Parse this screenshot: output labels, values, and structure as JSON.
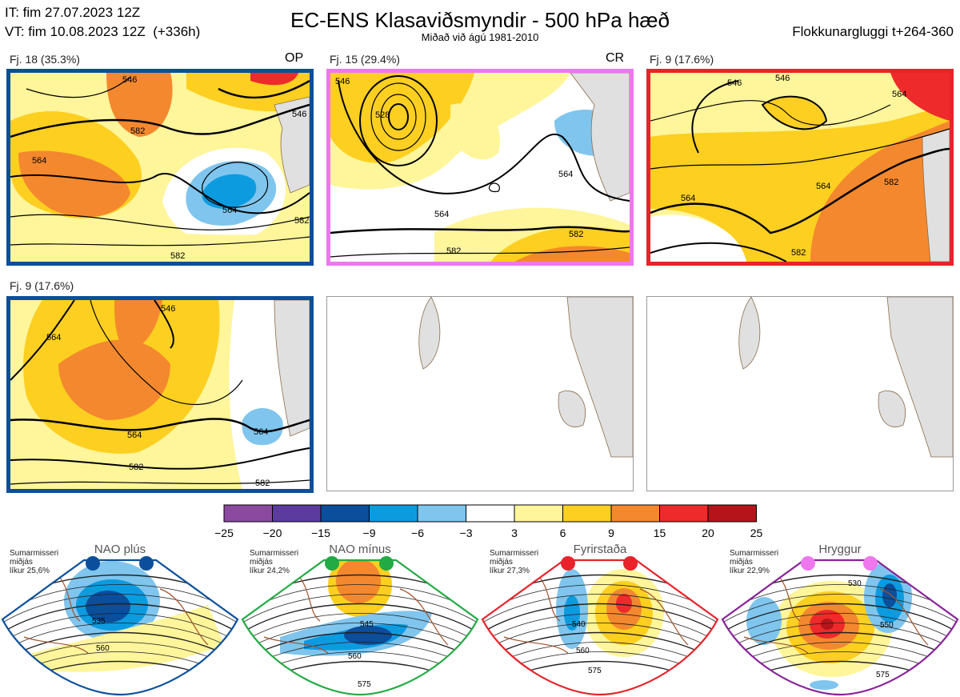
{
  "header": {
    "init_time": "IT: fim 27.07.2023 12Z",
    "valid_time": "VT: fim 10.08.2023 12Z  (+336h)",
    "title": "EC-ENS Klasaviðsmyndir - 500 hPa hæð",
    "subtitle": "Miðað við ágú 1981-2010",
    "window": "Flokkunargluggi t+264-360"
  },
  "clusters": [
    {
      "label": "Fj. 18 (35.3%)",
      "code": "OP",
      "border_color": "#0b4f9c",
      "contours": [
        "546",
        "564",
        "582",
        "564",
        "582",
        "582",
        "546"
      ]
    },
    {
      "label": "Fj. 15 (29.4%)",
      "code": "CR",
      "border_color": "#ee77ee",
      "contours": [
        "546",
        "528",
        "564",
        "564",
        "582",
        "582"
      ]
    },
    {
      "label": "Fj. 9 (17.6%)",
      "code": "",
      "border_color": "#e8232a",
      "contours": [
        "546",
        "546",
        "564",
        "564",
        "582",
        "582",
        "564"
      ]
    },
    {
      "label": "Fj. 9 (17.6%)",
      "code": "",
      "border_color": "#0b4f9c",
      "contours": [
        "564",
        "546",
        "564",
        "564",
        "582",
        "582"
      ]
    }
  ],
  "colorbar": {
    "colors": [
      "#8b4aa0",
      "#5b3b9e",
      "#0a4e9c",
      "#0d9be0",
      "#7fc5ee",
      "#ffffff",
      "#fff59a",
      "#fccf20",
      "#f4882e",
      "#ee2a2a",
      "#b5151a"
    ],
    "ticks": [
      "−25",
      "−20",
      "−15",
      "−9",
      "−6",
      "−3",
      "3",
      "6",
      "9",
      "15",
      "20",
      "25"
    ]
  },
  "regimes": [
    {
      "title": "NAO plús",
      "info": "Sumarmisseri\nmiðjás\nlíkur 25,6%",
      "dot_color": "#0b4f9c",
      "border_color": "#0b4f9c",
      "contours": [
        "535",
        "560"
      ]
    },
    {
      "title": "NAO mínus",
      "info": "Sumarmisseri\nmiðjás\nlíkur 24,2%",
      "dot_color": "#22aa44",
      "border_color": "#22aa44",
      "contours": [
        "545",
        "560",
        "575"
      ]
    },
    {
      "title": "Fyrirstaða",
      "info": "Sumarmisseri\nmiðjás\nlíkur 27,3%",
      "dot_color": "#e8232a",
      "border_color": "#e8232a",
      "contours": [
        "540",
        "560",
        "575"
      ]
    },
    {
      "title": "Hryggur",
      "info": "Sumarmisseri\nmiðjás\nlíkur 22,9%",
      "dot_color": "#ee77ee",
      "border_color": "#882299",
      "contours": [
        "530",
        "550",
        "575"
      ]
    }
  ]
}
